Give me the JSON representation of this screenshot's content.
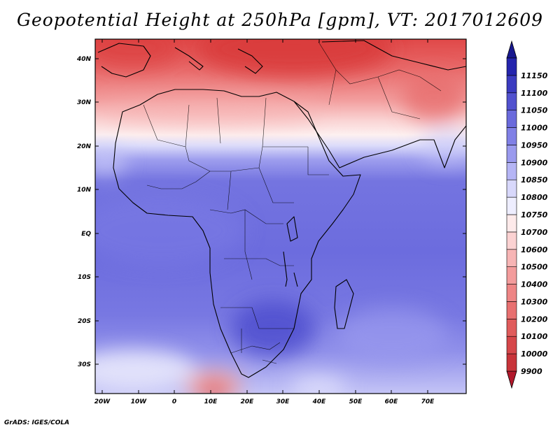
{
  "title": "Geopotential Height at 250hPa [gpm], VT: 2017012609",
  "credit": "GrADS: IGES/COLA",
  "map": {
    "lat_labels": [
      "40N",
      "30N",
      "20N",
      "10N",
      "EQ",
      "10S",
      "20S",
      "30S"
    ],
    "lon_labels": [
      "20W",
      "10W",
      "0",
      "10E",
      "20E",
      "30E",
      "40E",
      "50E",
      "60E",
      "70E"
    ]
  },
  "colorbar": {
    "levels": [
      "9900",
      "10000",
      "10100",
      "10200",
      "10300",
      "10400",
      "10500",
      "10600",
      "10700",
      "10750",
      "10800",
      "10850",
      "10900",
      "10950",
      "11000",
      "11050",
      "11100",
      "11150"
    ],
    "colors": [
      "#b2182b",
      "#c8343a",
      "#d6474a",
      "#e05c5c",
      "#e87070",
      "#ee8585",
      "#f39c9c",
      "#f7b5b5",
      "#fbd2d2",
      "#fdeaea",
      "#eeeeff",
      "#d8d8fb",
      "#b5b5f5",
      "#9a9aee",
      "#8080e6",
      "#6a6adc",
      "#5252cf",
      "#3b3bc0",
      "#2424ad",
      "#18188f"
    ]
  },
  "colors": {
    "land_outline": "#000000",
    "background": "#ffffff"
  }
}
